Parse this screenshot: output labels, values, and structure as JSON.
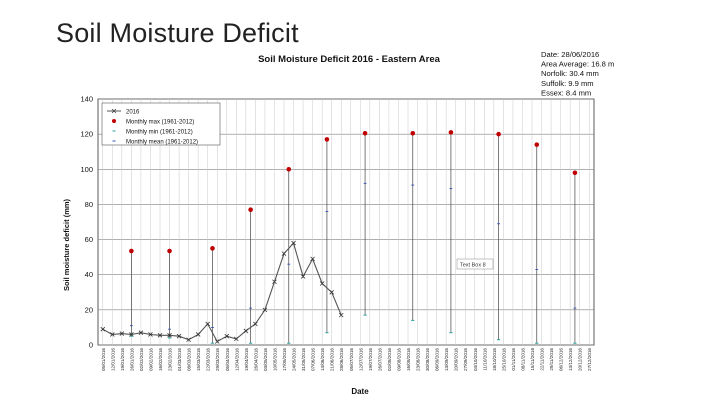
{
  "slide": {
    "title": "Soil Moisture Deficit"
  },
  "tools": {
    "add_icon": "plus-icon",
    "edit_icon": "pen-icon",
    "filter_icon": "filter-icon"
  },
  "colors": {
    "max": "#c00000",
    "min": "#2aa0a0",
    "mean": "#3050b0",
    "line2016": "#555555",
    "grid": "#808080"
  },
  "chart_data": {
    "type": "line",
    "title": "Soil Moisture Deficit 2016 - Eastern Area",
    "xlabel": "Date",
    "ylabel": "Soil moisture deficit (mm)",
    "ylim": [
      0,
      140
    ],
    "yticks": [
      0,
      20,
      40,
      60,
      80,
      100,
      120,
      140
    ],
    "grid": true,
    "legend_position": "top-left",
    "info_box": [
      "Date:   28/06/2016",
      "Area  Average:  16.8 m",
      "Norfolk:  30.4 mm",
      "Suffolk:   9.9  mm",
      "Essex:     8.4  mm"
    ],
    "annotation": "Text Box 8",
    "x_ticks": [
      "05/01/2016",
      "12/01/2016",
      "19/01/2016",
      "26/01/2016",
      "02/02/2016",
      "09/02/2016",
      "16/02/2016",
      "23/02/2016",
      "01/03/2016",
      "08/03/2016",
      "15/03/2016",
      "22/03/2016",
      "29/03/2016",
      "05/04/2016",
      "12/04/2016",
      "19/04/2016",
      "26/04/2016",
      "03/05/2016",
      "10/05/2016",
      "17/05/2016",
      "24/05/2016",
      "31/05/2016",
      "07/06/2016",
      "14/06/2016",
      "21/06/2016",
      "28/06/2016",
      "05/07/2016",
      "12/07/2016",
      "19/07/2016",
      "26/07/2016",
      "02/08/2016",
      "09/08/2016",
      "16/08/2016",
      "23/08/2016",
      "30/08/2016",
      "06/09/2016",
      "13/09/2016",
      "20/09/2016",
      "27/09/2016",
      "04/10/2016",
      "11/10/2016",
      "18/10/2016",
      "25/10/2016",
      "01/11/2016",
      "08/11/2016",
      "15/11/2016",
      "22/11/2016",
      "29/11/2016",
      "06/12/2016",
      "13/12/2016",
      "20/12/2016",
      "27/12/2016"
    ],
    "series": [
      {
        "name": "2016",
        "marker": "x",
        "x": [
          0,
          1,
          2,
          3,
          4,
          5,
          6,
          7,
          8,
          9,
          10,
          11,
          12,
          13,
          14,
          15,
          16,
          17,
          18,
          19,
          20,
          21,
          22,
          23,
          24,
          25
        ],
        "values": [
          9,
          6,
          6.5,
          6,
          7,
          6,
          5.5,
          5.5,
          5,
          3,
          6,
          12,
          2,
          5,
          3.5,
          8,
          12,
          20,
          36,
          52,
          58,
          39,
          49,
          35,
          30,
          17
        ]
      },
      {
        "name": "Monthly max (1961-2012)",
        "marker": "dot",
        "x": [
          3,
          7,
          11.5,
          15.5,
          19.5,
          23.5,
          27.5,
          32.5,
          36.5,
          41.5,
          45.5,
          49.5
        ],
        "values": [
          53.5,
          53.5,
          55,
          77,
          100,
          117,
          120.5,
          120.5,
          121,
          120,
          114,
          98
        ]
      },
      {
        "name": "Monthly min (1961-2012)",
        "marker": "dash",
        "x": [
          3,
          7,
          11.5,
          15.5,
          19.5,
          23.5,
          27.5,
          32.5,
          36.5,
          41.5,
          45.5,
          49.5
        ],
        "values": [
          5,
          4,
          1,
          1,
          1,
          7,
          17,
          14,
          7,
          3,
          1,
          1
        ]
      },
      {
        "name": "Monthly mean (1961-2012)",
        "marker": "plus",
        "x": [
          3,
          7,
          11.5,
          15.5,
          19.5,
          23.5,
          27.5,
          32.5,
          36.5,
          41.5,
          45.5,
          49.5
        ],
        "values": [
          11,
          9,
          10,
          21,
          46,
          76,
          92,
          91,
          89,
          69,
          43,
          21
        ]
      }
    ]
  }
}
